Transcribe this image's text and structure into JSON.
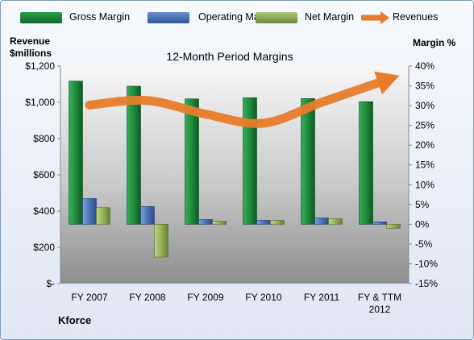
{
  "chart_data": {
    "type": "bar",
    "title": "12-Month Period Margins",
    "categories": [
      "FY 2007",
      "FY 2008",
      "FY 2009",
      "FY 2010",
      "FY 2011",
      "FY & TTM 2012"
    ],
    "series": [
      {
        "name": "Gross Margin",
        "axis": "right",
        "values": [
          36.2,
          34.9,
          31.7,
          32.0,
          31.8,
          31.0
        ]
      },
      {
        "name": "Operating Margin",
        "axis": "right",
        "values": [
          6.5,
          4.5,
          1.2,
          1.0,
          1.6,
          0.6
        ]
      },
      {
        "name": "Net Margin",
        "axis": "right",
        "values": [
          4.2,
          -8.3,
          0.8,
          1.0,
          1.4,
          -1.0
        ]
      },
      {
        "name": "Revenues",
        "axis": "left",
        "type": "line",
        "values": [
          985,
          1010,
          935,
          885,
          1000,
          1110
        ]
      }
    ],
    "y_left": {
      "label": "Revenue $millions",
      "range": [
        0,
        1200
      ],
      "ticks": [
        "$-",
        "$200",
        "$400",
        "$600",
        "$800",
        "$1,000",
        "$1,200"
      ]
    },
    "y_right": {
      "label": "Margin %",
      "range": [
        -15,
        40
      ],
      "ticks": [
        "-15%",
        "-10%",
        "-5%",
        "0%",
        "5%",
        "10%",
        "15%",
        "20%",
        "25%",
        "30%",
        "35%",
        "40%"
      ]
    },
    "legend": "top",
    "grid": false
  },
  "ylabel_left_line1": "Revenue",
  "ylabel_left_line2": "$millions",
  "ylabel_right": "Margin %",
  "company": "Kforce",
  "colors": {
    "gross": "#1e8a3c",
    "operating": "#4a73b8",
    "net": "#93b05a",
    "revenue": "#e77c2b"
  }
}
